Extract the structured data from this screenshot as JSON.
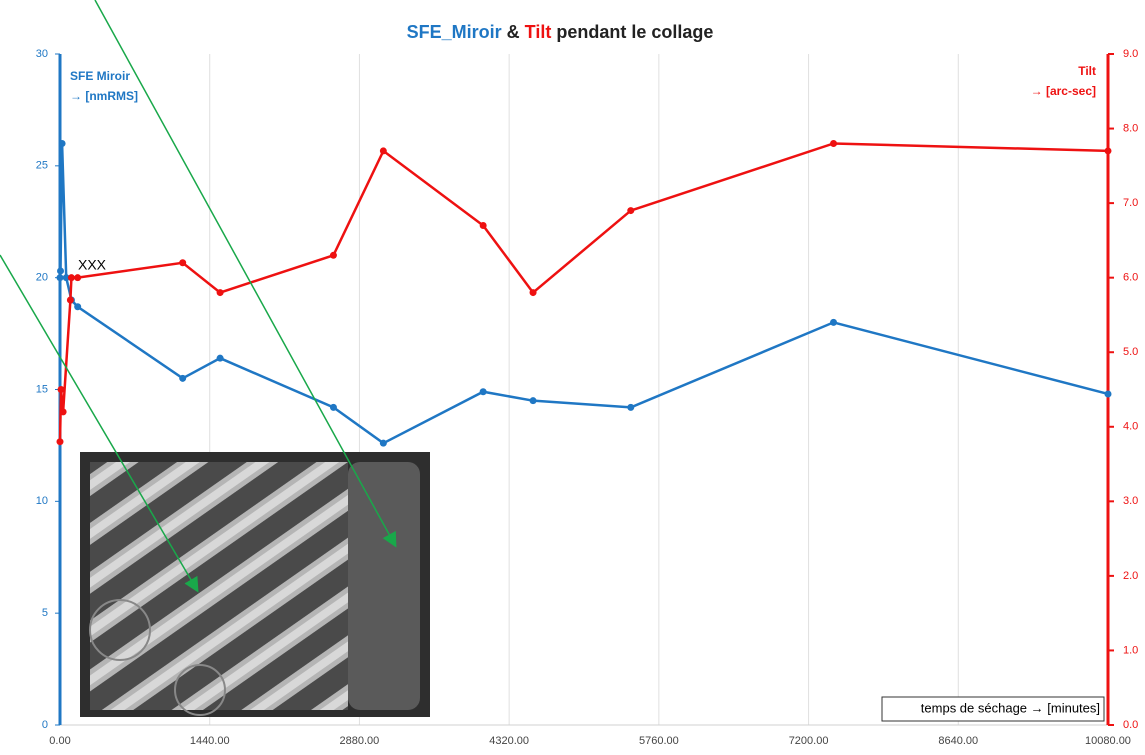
{
  "chart_data": {
    "type": "line",
    "title_parts": [
      {
        "text": "SFE_Miroir",
        "color": "#1f77c4"
      },
      {
        "text": "&",
        "color": "#222222"
      },
      {
        "text": "Tilt",
        "color": "#ee1111"
      },
      {
        "text": "pendant le collage",
        "color": "#222222"
      }
    ],
    "ylabel": [
      "SFE Miroir",
      "→ [nmRMS]"
    ],
    "y2label": [
      "Tilt",
      "→ [arc-sec]"
    ],
    "xlabel": "temps de séchage → [minutes]",
    "annotation": "XXX",
    "xlim": [
      0,
      10080
    ],
    "xticks": [
      {
        "value": 0,
        "label": "0.00"
      },
      {
        "value": 1440,
        "label": "1440.00"
      },
      {
        "value": 2880,
        "label": "2880.00"
      },
      {
        "value": 4320,
        "label": "4320.00"
      },
      {
        "value": 5760,
        "label": "5760.00"
      },
      {
        "value": 7200,
        "label": "7200.00"
      },
      {
        "value": 8640,
        "label": "8640.00"
      },
      {
        "value": 10080,
        "label": "10080.00"
      }
    ],
    "ylim": [
      0,
      30
    ],
    "yticks": [
      0,
      5,
      10,
      15,
      20,
      25,
      30
    ],
    "y2lim": [
      0,
      9
    ],
    "y2ticks": [
      {
        "value": 0,
        "label": "0.0"
      },
      {
        "value": 1,
        "label": "1.0"
      },
      {
        "value": 2,
        "label": "2.0"
      },
      {
        "value": 3,
        "label": "3.0"
      },
      {
        "value": 4,
        "label": "4.0"
      },
      {
        "value": 5,
        "label": "5.0"
      },
      {
        "value": 6,
        "label": "6.0"
      },
      {
        "value": 7,
        "label": "7.0"
      },
      {
        "value": 8,
        "label": "8.0"
      },
      {
        "value": 9,
        "label": "9.0"
      }
    ],
    "grid": "x",
    "series": [
      {
        "name": "SFE Miroir",
        "color": "#1f77c4",
        "axis": "y",
        "x": [
          0,
          5,
          20,
          60,
          110,
          170,
          1180,
          1540,
          2630,
          3110,
          4070,
          4550,
          5490,
          7440,
          10080
        ],
        "values": [
          20,
          20.3,
          26,
          20,
          19,
          18.7,
          15.5,
          16.4,
          14.2,
          12.6,
          14.9,
          14.5,
          14.2,
          18,
          14.8
        ]
      },
      {
        "name": "Tilt",
        "color": "#ee1111",
        "axis": "y2",
        "x": [
          0,
          10,
          30,
          100,
          110,
          170,
          1180,
          1540,
          2630,
          3110,
          4070,
          4550,
          5490,
          7440,
          10080
        ],
        "values": [
          3.8,
          4.5,
          4.2,
          5.7,
          6.0,
          6.0,
          6.2,
          5.8,
          6.3,
          7.7,
          6.7,
          5.8,
          6.9,
          7.8,
          7.7
        ]
      }
    ]
  }
}
